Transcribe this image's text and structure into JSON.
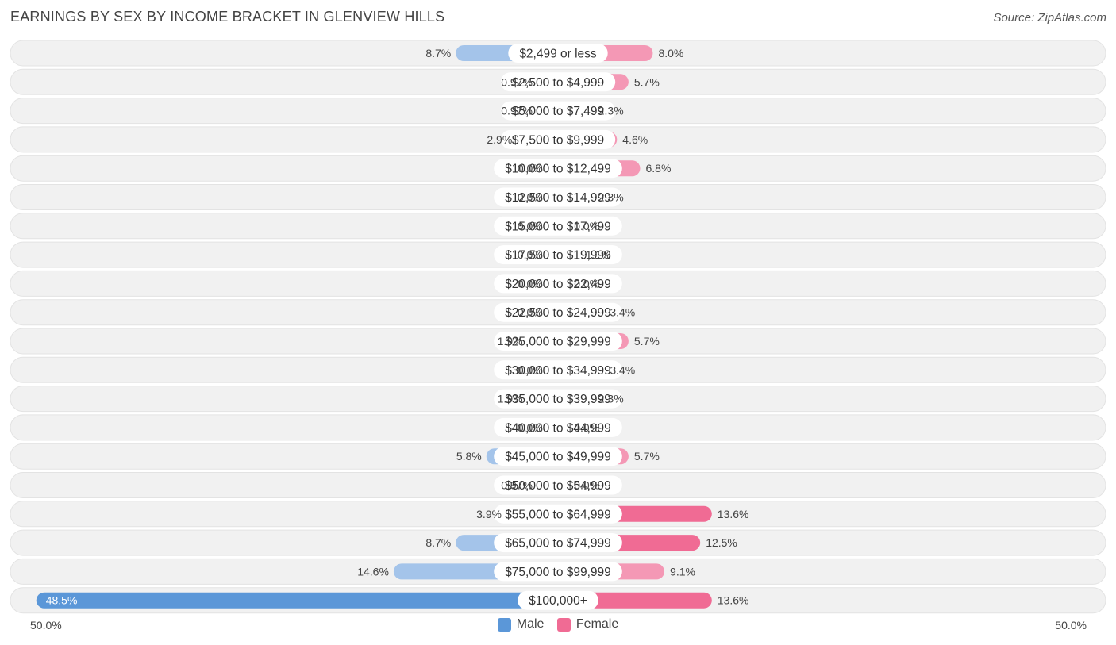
{
  "title": "EARNINGS BY SEX BY INCOME BRACKET IN GLENVIEW HILLS",
  "source": "Source: ZipAtlas.com",
  "axis": {
    "left_label": "50.0%",
    "right_label": "50.0%"
  },
  "legend": {
    "male": "Male",
    "female": "Female"
  },
  "colors": {
    "male": "#a4c4ea",
    "male_strong": "#5b97d8",
    "female": "#f498b5",
    "female_strong": "#f06b94",
    "row_bg": "#f1f1f1",
    "label_bg": "#ffffff"
  },
  "chart_data": {
    "type": "bar",
    "orientation": "horizontal-diverging",
    "title": "EARNINGS BY SEX BY INCOME BRACKET IN GLENVIEW HILLS",
    "xlim": [
      -50,
      50
    ],
    "categories": [
      "$2,499 or less",
      "$2,500 to $4,999",
      "$5,000 to $7,499",
      "$7,500 to $9,999",
      "$10,000 to $12,499",
      "$12,500 to $14,999",
      "$15,000 to $17,499",
      "$17,500 to $19,999",
      "$20,000 to $22,499",
      "$22,500 to $24,999",
      "$25,000 to $29,999",
      "$30,000 to $34,999",
      "$35,000 to $39,999",
      "$40,000 to $44,999",
      "$45,000 to $49,999",
      "$50,000 to $54,999",
      "$55,000 to $64,999",
      "$65,000 to $74,999",
      "$75,000 to $99,999",
      "$100,000+"
    ],
    "series": [
      {
        "name": "Male",
        "values": [
          8.7,
          0.97,
          0.97,
          2.9,
          0.0,
          0.0,
          0.0,
          0.0,
          0.0,
          0.0,
          1.9,
          0.0,
          1.9,
          0.0,
          5.8,
          0.97,
          3.9,
          8.7,
          14.6,
          48.5
        ],
        "labels": [
          "8.7%",
          "0.97%",
          "0.97%",
          "2.9%",
          "0.0%",
          "0.0%",
          "0.0%",
          "0.0%",
          "0.0%",
          "0.0%",
          "1.9%",
          "0.0%",
          "1.9%",
          "0.0%",
          "5.8%",
          "0.97%",
          "3.9%",
          "8.7%",
          "14.6%",
          "48.5%"
        ]
      },
      {
        "name": "Female",
        "values": [
          8.0,
          5.7,
          2.3,
          4.6,
          6.8,
          2.3,
          0.0,
          1.1,
          0.0,
          3.4,
          5.7,
          3.4,
          2.3,
          0.0,
          5.7,
          0.0,
          13.6,
          12.5,
          9.1,
          13.6
        ],
        "labels": [
          "8.0%",
          "5.7%",
          "2.3%",
          "4.6%",
          "6.8%",
          "2.3%",
          "0.0%",
          "1.1%",
          "0.0%",
          "3.4%",
          "5.7%",
          "3.4%",
          "2.3%",
          "0.0%",
          "5.7%",
          "0.0%",
          "13.6%",
          "12.5%",
          "9.1%",
          "13.6%"
        ]
      }
    ]
  }
}
